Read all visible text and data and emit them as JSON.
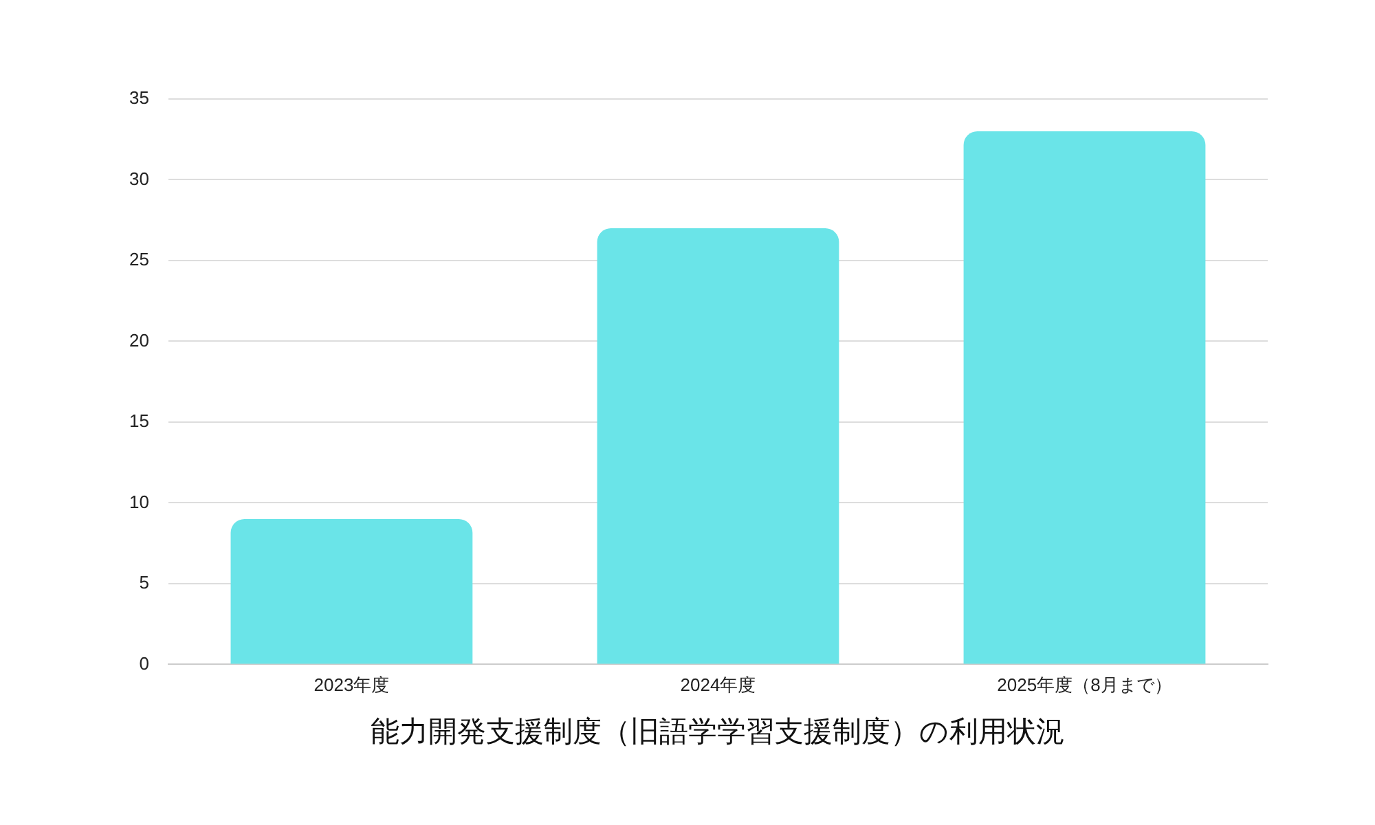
{
  "chart_data": {
    "type": "bar",
    "xlabel": "能力開発支援制度（旧語学学習支援制度）の利用状況",
    "categories": [
      "2023年度",
      "2024年度",
      "2025年度（8月まで）"
    ],
    "values": [
      9,
      27,
      33
    ],
    "color": "#6ae4e8",
    "ylim": [
      0,
      35
    ],
    "yticks": [
      0,
      5,
      10,
      15,
      20,
      25,
      30,
      35
    ],
    "grid": "y",
    "legend": false
  }
}
